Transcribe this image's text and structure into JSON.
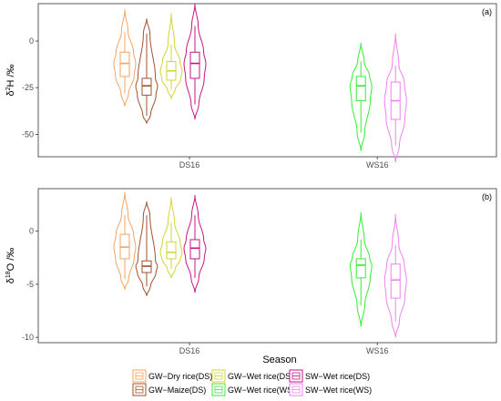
{
  "chart_data": [
    {
      "type": "violin",
      "panel_label": "(a)",
      "ylabel_main": "δ",
      "ylabel_sup": "2",
      "ylabel_rest": "H /‰",
      "ylim": [
        -62,
        20
      ],
      "yticks": [
        0,
        -25,
        -50
      ],
      "categories": [
        "DS16",
        "WS16"
      ],
      "series": [
        {
          "name": "GW−Dry rice(DS)",
          "category": "DS16",
          "color": "#f4a460",
          "min": -35,
          "max": 17,
          "q1": -19,
          "median": -12,
          "q3": -6,
          "whisker_low": -28,
          "whisker_high": 5
        },
        {
          "name": "GW−Maize(DS)",
          "category": "DS16",
          "color": "#a0522d",
          "min": -44,
          "max": 12,
          "q1": -29,
          "median": -24,
          "q3": -20,
          "whisker_low": -40,
          "whisker_high": 4
        },
        {
          "name": "GW−Wet rice(DS)",
          "category": "DS16",
          "color": "#d4d433",
          "min": -31,
          "max": 15,
          "q1": -21,
          "median": -16,
          "q3": -11,
          "whisker_low": -26,
          "whisker_high": -2
        },
        {
          "name": "SW−Wet rice(DS)",
          "category": "DS16",
          "color": "#c71585",
          "min": -42,
          "max": 20,
          "q1": -20,
          "median": -12,
          "q3": -6,
          "whisker_low": -34,
          "whisker_high": 8
        },
        {
          "name": "GW−Wet rice(WS)",
          "category": "WS16",
          "color": "#33ee33",
          "min": -59,
          "max": -1,
          "q1": -32,
          "median": -24,
          "q3": -19,
          "whisker_low": -49,
          "whisker_high": -11
        },
        {
          "name": "SW−Wet rice(WS)",
          "category": "WS16",
          "color": "#ee82ee",
          "min": -65,
          "max": 4,
          "q1": -42,
          "median": -32,
          "q3": -22,
          "whisker_low": -56,
          "whisker_high": -13
        }
      ]
    },
    {
      "type": "violin",
      "panel_label": "(b)",
      "ylabel_main": "δ",
      "ylabel_sup": "18",
      "ylabel_rest": "O /‰",
      "xlabel": "Season",
      "ylim": [
        -10.5,
        4.0
      ],
      "yticks": [
        0,
        -5,
        -10
      ],
      "categories": [
        "DS16",
        "WS16"
      ],
      "series": [
        {
          "name": "GW−Dry rice(DS)",
          "category": "DS16",
          "color": "#f4a460",
          "min": -5.5,
          "max": 3.7,
          "q1": -2.6,
          "median": -1.5,
          "q3": -0.3,
          "whisker_low": -4.5,
          "whisker_high": 1.5
        },
        {
          "name": "GW−Maize(DS)",
          "category": "DS16",
          "color": "#a0522d",
          "min": -6.1,
          "max": 2.8,
          "q1": -3.9,
          "median": -3.3,
          "q3": -2.8,
          "whisker_low": -5.2,
          "whisker_high": 1.5
        },
        {
          "name": "GW−Wet rice(DS)",
          "category": "DS16",
          "color": "#d4d433",
          "min": -4.4,
          "max": 3.2,
          "q1": -2.6,
          "median": -2.0,
          "q3": -1.0,
          "whisker_low": -3.6,
          "whisker_high": 0.8
        },
        {
          "name": "SW−Wet rice(DS)",
          "category": "DS16",
          "color": "#c71585",
          "min": -5.8,
          "max": 3.4,
          "q1": -2.6,
          "median": -1.6,
          "q3": -0.8,
          "whisker_low": -4.4,
          "whisker_high": 1.5
        },
        {
          "name": "GW−Wet rice(WS)",
          "category": "WS16",
          "color": "#33ee33",
          "min": -9.0,
          "max": 1.8,
          "q1": -4.4,
          "median": -3.2,
          "q3": -2.6,
          "whisker_low": -7.0,
          "whisker_high": -0.8
        },
        {
          "name": "SW−Wet rice(WS)",
          "category": "WS16",
          "color": "#ee82ee",
          "min": -10.0,
          "max": 1.6,
          "q1": -6.3,
          "median": -4.6,
          "q3": -3.1,
          "whisker_low": -8.5,
          "whisker_high": -1.3
        }
      ]
    }
  ],
  "legend": {
    "items": [
      {
        "label": "GW−Dry rice(DS)",
        "color": "#f4a460"
      },
      {
        "label": "GW−Wet rice(DS)",
        "color": "#d4d433"
      },
      {
        "label": "SW−Wet rice(DS)",
        "color": "#c71585"
      },
      {
        "label": "GW−Maize(DS)",
        "color": "#a0522d"
      },
      {
        "label": "GW−Wet rice(WS)",
        "color": "#33ee33"
      },
      {
        "label": "SW−Wet rice(WS)",
        "color": "#ee82ee"
      }
    ]
  }
}
